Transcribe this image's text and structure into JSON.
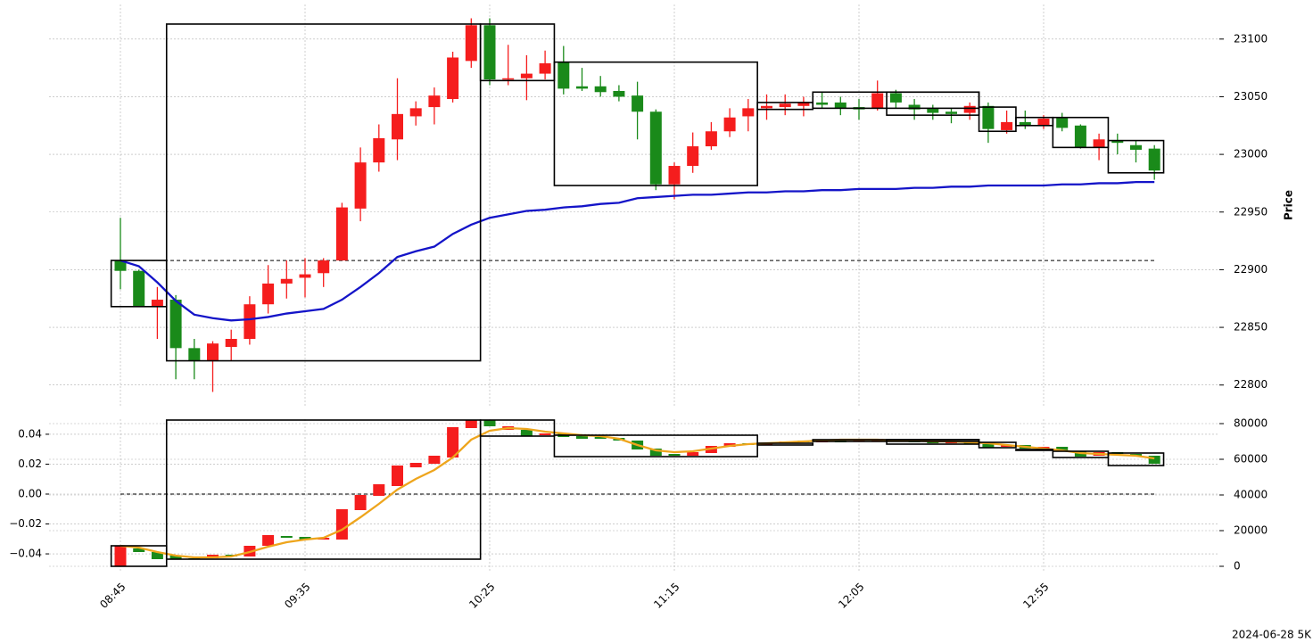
{
  "footer": "2024-06-28 5K",
  "chart_data": [
    {
      "type": "candlestick",
      "y_label": "Price",
      "up_color": "#f51d1d",
      "down_color": "#1a8a1a",
      "grid": true,
      "ylim": [
        22782,
        23130
      ],
      "yticks": [
        22800,
        22850,
        22900,
        22950,
        23000,
        23050,
        23100
      ],
      "open": [
        22908,
        22899,
        22868,
        22874,
        22832,
        22821,
        22833,
        22840,
        22870,
        22888,
        22893,
        22897,
        22908,
        22953,
        22993,
        23013,
        23033,
        23041,
        23048,
        23081,
        23112,
        23065,
        23066,
        23070,
        23080,
        23059,
        23059,
        23055,
        23051,
        23037,
        22974,
        22990,
        23007,
        23020,
        23033,
        23040,
        23041,
        23042,
        23045,
        23045,
        23041,
        23040,
        23053,
        23043,
        23040,
        23037,
        23036,
        23042,
        23021,
        23028,
        23025,
        23032,
        23025,
        23006,
        23012,
        23008,
        23005
      ],
      "high": [
        22945,
        22900,
        22885,
        22878,
        22840,
        22838,
        22848,
        22877,
        22904,
        22908,
        22910,
        22910,
        22958,
        23006,
        23026,
        23066,
        23046,
        23058,
        23089,
        23118,
        23118,
        23095,
        23086,
        23090,
        23094,
        23075,
        23068,
        23060,
        23063,
        23039,
        22993,
        23019,
        23028,
        23040,
        23048,
        23052,
        23052,
        23050,
        23054,
        23050,
        23048,
        23064,
        23056,
        23048,
        23043,
        23040,
        23045,
        23045,
        23038,
        23038,
        23034,
        23036,
        23026,
        23018,
        23018,
        23012,
        23008
      ],
      "low": [
        22883,
        22868,
        22840,
        22805,
        22805,
        22794,
        22821,
        22835,
        22862,
        22875,
        22876,
        22885,
        22908,
        22942,
        22985,
        22995,
        23025,
        23026,
        23045,
        23075,
        23060,
        23060,
        23047,
        23065,
        23052,
        23055,
        23050,
        23046,
        23013,
        22969,
        22961,
        22984,
        23004,
        23015,
        23020,
        23030,
        23034,
        23033,
        23040,
        23034,
        23030,
        23038,
        23040,
        23030,
        23030,
        23027,
        23030,
        23010,
        23018,
        23022,
        23022,
        23020,
        23005,
        22995,
        23000,
        22993,
        22978
      ],
      "close": [
        22899,
        22868,
        22874,
        22832,
        22821,
        22836,
        22840,
        22870,
        22888,
        22892,
        22896,
        22908,
        22954,
        22993,
        23014,
        23035,
        23040,
        23051,
        23084,
        23112,
        23065,
        23066,
        23070,
        23079,
        23057,
        23057,
        23054,
        23050,
        23037,
        22974,
        22990,
        23007,
        23020,
        23032,
        23040,
        23042,
        23044,
        23045,
        23043,
        23040,
        23039,
        23053,
        23045,
        23039,
        23036,
        23035,
        23042,
        23022,
        23028,
        23025,
        23031,
        23023,
        23006,
        23013,
        23010,
        23004,
        22986
      ],
      "line": {
        "color": "#1414c8",
        "values": [
          22908,
          22903,
          22889,
          22873,
          22861,
          22858,
          22856,
          22857,
          22859,
          22862,
          22864,
          22866,
          22874,
          22885,
          22897,
          22911,
          22916,
          22920,
          22931,
          22939,
          22945,
          22948,
          22951,
          22952,
          22954,
          22955,
          22957,
          22958,
          22962,
          22963,
          22964,
          22965,
          22965,
          22966,
          22967,
          22967,
          22968,
          22968,
          22969,
          22969,
          22970,
          22970,
          22970,
          22971,
          22971,
          22972,
          22972,
          22973,
          22973,
          22973,
          22973,
          22974,
          22974,
          22975,
          22975,
          22976,
          22976
        ]
      },
      "reference": 22908,
      "boxes": [
        {
          "start": 0,
          "end": 2,
          "high": 22908,
          "low": 22868
        },
        {
          "start": 3,
          "end": 19,
          "high": 23113,
          "low": 22821
        },
        {
          "start": 20,
          "end": 23,
          "high": 23113,
          "low": 23064
        },
        {
          "start": 24,
          "end": 34,
          "high": 23080,
          "low": 22973
        },
        {
          "start": 35,
          "end": 37,
          "high": 23045,
          "low": 23039
        },
        {
          "start": 38,
          "end": 46,
          "high": 23054,
          "low": 23040
        },
        {
          "start": 42,
          "end": 46,
          "high": 23054,
          "low": 23034
        },
        {
          "start": 47,
          "end": 48,
          "high": 23041,
          "low": 23020
        },
        {
          "start": 49,
          "end": 50,
          "high": 23032,
          "low": 23025
        },
        {
          "start": 51,
          "end": 53,
          "high": 23032,
          "low": 23006
        },
        {
          "start": 54,
          "end": 56,
          "high": 23012,
          "low": 22984
        }
      ]
    },
    {
      "type": "candlestick",
      "up_color": "#f51d1d",
      "down_color": "#1a8a1a",
      "grid": true,
      "categories": [
        "08:45",
        null,
        null,
        null,
        null,
        null,
        null,
        null,
        null,
        null,
        "09:35",
        null,
        null,
        null,
        null,
        null,
        null,
        null,
        null,
        null,
        "10:25",
        null,
        null,
        null,
        null,
        null,
        null,
        null,
        null,
        null,
        "11:15",
        null,
        null,
        null,
        null,
        null,
        null,
        null,
        null,
        null,
        "12:05",
        null,
        null,
        null,
        null,
        null,
        null,
        null,
        null,
        null,
        "12:55",
        null,
        null,
        null,
        null,
        null,
        null
      ],
      "ylim": [
        -0.0513,
        0.0501
      ],
      "yticks": [
        {
          "value": -0.04,
          "label": "−0.04"
        },
        {
          "value": -0.02,
          "label": "−0.02"
        },
        {
          "value": 0,
          "label": "0.00"
        },
        0.02,
        0.04
      ],
      "y2lim": [
        -2500,
        82500
      ],
      "y2ticks": [
        0,
        20000,
        40000,
        60000,
        80000
      ],
      "open": [
        0,
        10000,
        8000,
        6000,
        4500,
        4500,
        6500,
        5500,
        11500,
        17000,
        16500,
        15000,
        15000,
        31500,
        39500,
        45000,
        55500,
        57500,
        61000,
        77500,
        82000,
        76500,
        76500,
        73500,
        74500,
        73000,
        72500,
        72000,
        70500,
        66000,
        63000,
        62000,
        63500,
        67000,
        69000,
        68000,
        69000,
        70500,
        69500,
        70500,
        70000,
        70000,
        71000,
        70500,
        70000,
        69000,
        70000,
        68500,
        67000,
        68000,
        66000,
        67000,
        64500,
        62000,
        64000,
        63000,
        62000
      ],
      "close": [
        11500,
        8000,
        4000,
        4000,
        4000,
        6500,
        5500,
        11500,
        17500,
        16000,
        15000,
        16000,
        32000,
        40000,
        46000,
        56500,
        58000,
        62000,
        78000,
        82000,
        78500,
        78500,
        73000,
        74500,
        72500,
        71500,
        71500,
        70500,
        65500,
        62000,
        62000,
        64000,
        67500,
        69000,
        68000,
        69000,
        70000,
        69500,
        70500,
        69500,
        71000,
        71500,
        70000,
        69500,
        69000,
        70000,
        68500,
        66500,
        68000,
        66000,
        67000,
        64500,
        61500,
        64000,
        63000,
        62000,
        57500
      ],
      "axis": "y2",
      "line": {
        "color": "#eea51c",
        "axis": "y2",
        "values": [
          11500,
          10500,
          8000,
          6000,
          5000,
          5000,
          5500,
          8000,
          11000,
          13500,
          15000,
          16000,
          20500,
          27500,
          35000,
          43000,
          49000,
          54000,
          61000,
          71000,
          76000,
          77500,
          77000,
          75500,
          74500,
          73500,
          73000,
          71500,
          68000,
          65000,
          64000,
          64500,
          66000,
          67500,
          68500,
          69000,
          69500,
          70000,
          70500,
          71000,
          71000,
          71000,
          70500,
          70500,
          70000,
          70000,
          69500,
          69000,
          68000,
          67000,
          66000,
          65000,
          63500,
          63000,
          62500,
          62000,
          60500
        ]
      },
      "reference": 0,
      "boxes": [
        {
          "start": 0,
          "end": 2,
          "high": 11500,
          "low": 0
        },
        {
          "start": 3,
          "end": 19,
          "high": 82000,
          "low": 4000
        },
        {
          "start": 20,
          "end": 23,
          "high": 82000,
          "low": 73000
        },
        {
          "start": 24,
          "end": 34,
          "high": 73500,
          "low": 61500
        },
        {
          "start": 35,
          "end": 37,
          "high": 69000,
          "low": 68000
        },
        {
          "start": 38,
          "end": 46,
          "high": 71000,
          "low": 70000
        },
        {
          "start": 42,
          "end": 46,
          "high": 71000,
          "low": 68500
        },
        {
          "start": 47,
          "end": 48,
          "high": 69500,
          "low": 66500
        },
        {
          "start": 49,
          "end": 50,
          "high": 65500,
          "low": 65000
        },
        {
          "start": 51,
          "end": 53,
          "high": 64500,
          "low": 61000
        },
        {
          "start": 54,
          "end": 56,
          "high": 63500,
          "low": 56500
        }
      ]
    }
  ]
}
